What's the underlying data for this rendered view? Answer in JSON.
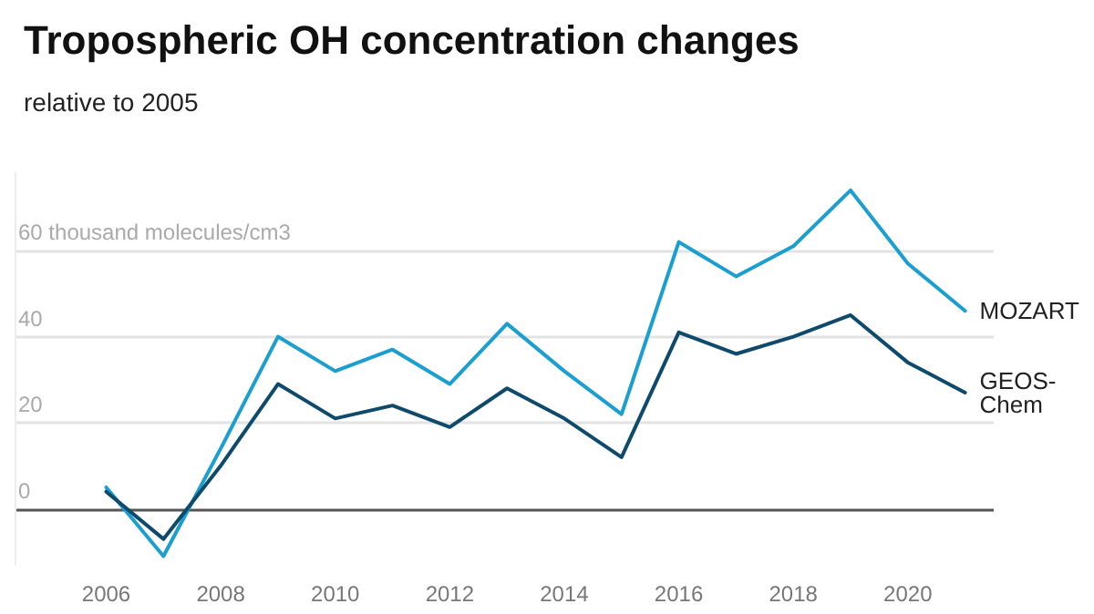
{
  "chart_data": {
    "type": "line",
    "title": "Tropospheric OH concentration changes",
    "subtitle": "relative to 2005",
    "x": [
      2006,
      2007,
      2008,
      2009,
      2010,
      2011,
      2012,
      2013,
      2014,
      2015,
      2016,
      2017,
      2018,
      2019,
      2020,
      2021
    ],
    "series": [
      {
        "name": "MOZART",
        "color": "#1a9fd0",
        "values": [
          5,
          -11,
          14,
          40,
          32,
          37,
          29,
          43,
          32,
          22,
          62,
          54,
          61,
          74,
          57,
          46
        ]
      },
      {
        "name": "GEOS-Chem",
        "color": "#0d4a6b",
        "values": [
          4,
          -7,
          10,
          29,
          21,
          24,
          19,
          28,
          21,
          12,
          41,
          36,
          40,
          45,
          34,
          27
        ]
      }
    ],
    "xlim": [
      2004.4,
      2021.5
    ],
    "xticks": [
      2006,
      2008,
      2010,
      2012,
      2014,
      2016,
      2018,
      2020
    ],
    "ylim": [
      -13,
      78
    ],
    "yticks": [
      0,
      20,
      40,
      {
        "value": 60,
        "label": "60 thousand molecules/cm3"
      }
    ],
    "grid": "y",
    "legend": false,
    "marker": "none",
    "line_style": "solid"
  }
}
